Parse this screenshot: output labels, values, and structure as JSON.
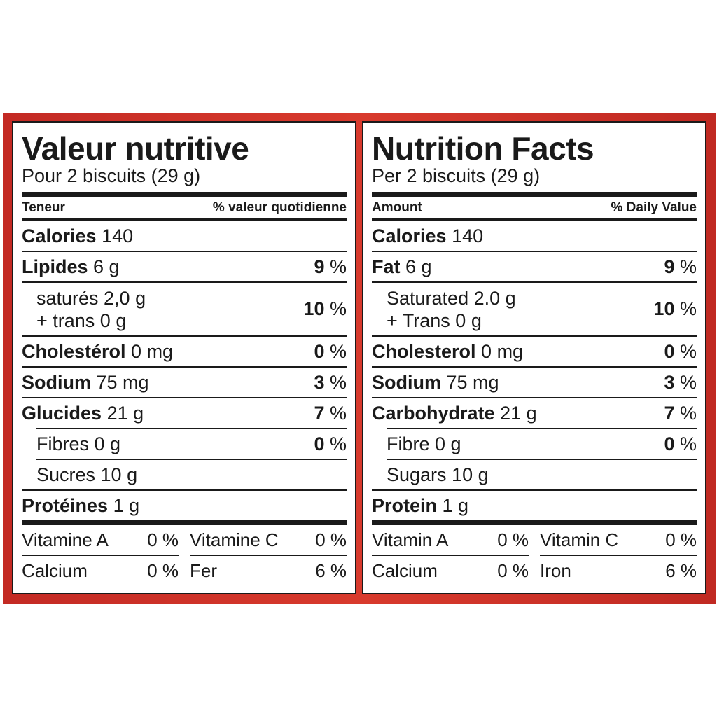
{
  "colors": {
    "frame": "#d03428",
    "ink": "#1a1a1a",
    "panel": "#ffffff"
  },
  "fr": {
    "title": "Valeur nutritive",
    "serving": "Pour 2 biscuits (29 g)",
    "header_left": "Teneur",
    "header_right": "% valeur quotidienne",
    "calories_label": "Calories",
    "calories_value": "140",
    "fat_label": "Lipides",
    "fat_amount": "6 g",
    "fat_dv": "9",
    "sat_line1": "saturés 2,0 g",
    "sat_line2": "+ trans 0 g",
    "sat_dv": "10",
    "chol_label": "Cholestérol",
    "chol_amount": "0 mg",
    "chol_dv": "0",
    "sodium_label": "Sodium",
    "sodium_amount": "75 mg",
    "sodium_dv": "3",
    "carb_label": "Glucides",
    "carb_amount": "21 g",
    "carb_dv": "7",
    "fibre_label": "Fibres 0 g",
    "fibre_dv": "0",
    "sugars_label": "Sucres 10 g",
    "protein_label": "Protéines",
    "protein_amount": "1 g",
    "vit_a_label": "Vitamine A",
    "vit_a_dv": "0 %",
    "vit_c_label": "Vitamine C",
    "vit_c_dv": "0 %",
    "calcium_label": "Calcium",
    "calcium_dv": "0 %",
    "iron_label": "Fer",
    "iron_dv": "6 %"
  },
  "en": {
    "title": "Nutrition Facts",
    "serving": "Per 2 biscuits (29 g)",
    "header_left": "Amount",
    "header_right": "% Daily Value",
    "calories_label": "Calories",
    "calories_value": "140",
    "fat_label": "Fat",
    "fat_amount": "6 g",
    "fat_dv": "9",
    "sat_line1": "Saturated 2.0 g",
    "sat_line2": "+ Trans 0 g",
    "sat_dv": "10",
    "chol_label": "Cholesterol",
    "chol_amount": "0 mg",
    "chol_dv": "0",
    "sodium_label": "Sodium",
    "sodium_amount": "75 mg",
    "sodium_dv": "3",
    "carb_label": "Carbohydrate",
    "carb_amount": "21 g",
    "carb_dv": "7",
    "fibre_label": "Fibre 0 g",
    "fibre_dv": "0",
    "sugars_label": "Sugars 10 g",
    "protein_label": "Protein",
    "protein_amount": "1 g",
    "vit_a_label": "Vitamin A",
    "vit_a_dv": "0 %",
    "vit_c_label": "Vitamin C",
    "vit_c_dv": "0 %",
    "calcium_label": "Calcium",
    "calcium_dv": "0 %",
    "iron_label": "Iron",
    "iron_dv": "6 %"
  },
  "percent_sign": "%"
}
